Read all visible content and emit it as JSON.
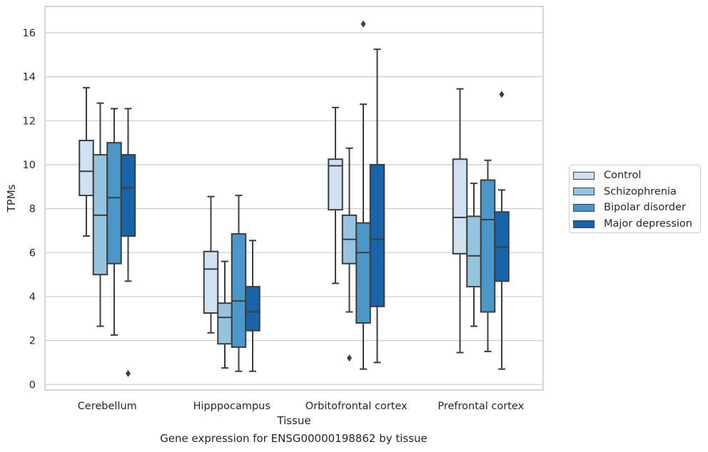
{
  "caption": "Gene expression for ENSG00000198862 by tissue",
  "chart_data": {
    "type": "boxplot",
    "xlabel": "Tissue",
    "ylabel": "TPMs",
    "ylim": [
      -0.25,
      17.2
    ],
    "yticks": [
      0,
      2,
      4,
      6,
      8,
      10,
      12,
      14,
      16
    ],
    "grid": "horizontal",
    "legend_position": "right",
    "categories": [
      "Cerebellum",
      "Hipppocampus",
      "Orbitofrontal cortex",
      "Prefrontal cortex"
    ],
    "series": [
      {
        "name": "Control",
        "color": "#d0e1f2",
        "boxes": [
          {
            "whisker_low": 6.75,
            "q1": 8.6,
            "median": 9.7,
            "q3": 11.1,
            "whisker_high": 13.5,
            "outliers": []
          },
          {
            "whisker_low": 2.35,
            "q1": 3.25,
            "median": 5.25,
            "q3": 6.05,
            "whisker_high": 8.55,
            "outliers": []
          },
          {
            "whisker_low": 4.6,
            "q1": 7.95,
            "median": 9.95,
            "q3": 10.25,
            "whisker_high": 12.6,
            "outliers": []
          },
          {
            "whisker_low": 1.45,
            "q1": 5.95,
            "median": 7.6,
            "q3": 10.25,
            "whisker_high": 13.45,
            "outliers": []
          }
        ]
      },
      {
        "name": "Schizophrenia",
        "color": "#94c4df",
        "boxes": [
          {
            "whisker_low": 2.65,
            "q1": 5.0,
            "median": 7.7,
            "q3": 10.45,
            "whisker_high": 12.8,
            "outliers": []
          },
          {
            "whisker_low": 0.75,
            "q1": 1.85,
            "median": 3.05,
            "q3": 3.7,
            "whisker_high": 5.6,
            "outliers": []
          },
          {
            "whisker_low": 3.3,
            "q1": 5.5,
            "median": 6.6,
            "q3": 7.7,
            "whisker_high": 10.75,
            "outliers": [
              1.2
            ]
          },
          {
            "whisker_low": 2.65,
            "q1": 4.45,
            "median": 5.85,
            "q3": 7.65,
            "whisker_high": 9.15,
            "outliers": []
          }
        ]
      },
      {
        "name": "Bipolar disorder",
        "color": "#4a98c9",
        "boxes": [
          {
            "whisker_low": 2.25,
            "q1": 5.5,
            "median": 8.5,
            "q3": 11.0,
            "whisker_high": 12.55,
            "outliers": []
          },
          {
            "whisker_low": 0.6,
            "q1": 1.7,
            "median": 3.8,
            "q3": 6.85,
            "whisker_high": 8.6,
            "outliers": []
          },
          {
            "whisker_low": 0.7,
            "q1": 2.8,
            "median": 6.0,
            "q3": 7.35,
            "whisker_high": 12.75,
            "outliers": [
              16.4
            ]
          },
          {
            "whisker_low": 1.5,
            "q1": 3.3,
            "median": 7.5,
            "q3": 9.3,
            "whisker_high": 10.2,
            "outliers": []
          }
        ]
      },
      {
        "name": "Major depression",
        "color": "#1764ab",
        "boxes": [
          {
            "whisker_low": 4.7,
            "q1": 6.75,
            "median": 8.95,
            "q3": 10.45,
            "whisker_high": 12.55,
            "outliers": [
              0.5
            ]
          },
          {
            "whisker_low": 0.6,
            "q1": 2.45,
            "median": 3.3,
            "q3": 4.45,
            "whisker_high": 6.55,
            "outliers": []
          },
          {
            "whisker_low": 1.0,
            "q1": 3.55,
            "median": 6.6,
            "q3": 10.0,
            "whisker_high": 15.25,
            "outliers": []
          },
          {
            "whisker_low": 0.7,
            "q1": 4.7,
            "median": 6.25,
            "q3": 7.85,
            "whisker_high": 8.85,
            "outliers": [
              13.2
            ]
          }
        ]
      }
    ]
  }
}
